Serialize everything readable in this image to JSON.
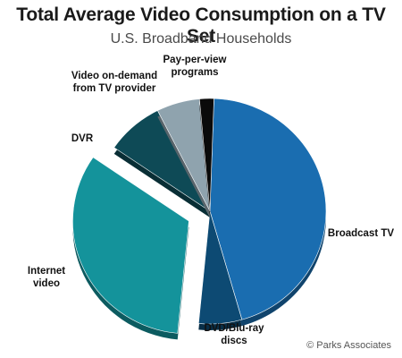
{
  "chart_data": {
    "type": "pie",
    "title": "Total Average Video Consumption on a TV Set",
    "subtitle": "U.S. Broadband Households",
    "source": "© Parks Associates",
    "slices": [
      {
        "label": [
          "Broadcast TV"
        ],
        "value": 45,
        "color": "#1a6db0"
      },
      {
        "label": [
          "DVD/Blu-ray",
          "discs"
        ],
        "value": 6,
        "color": "#0d4a73"
      },
      {
        "label": [
          "Internet",
          "video"
        ],
        "value": 33,
        "color": "#14939b",
        "exploded": true
      },
      {
        "label": [
          "DVR"
        ],
        "value": 8,
        "color": "#0e4a56"
      },
      {
        "label": [
          "Video on-demand",
          "from TV provider"
        ],
        "value": 6,
        "color": "#8fa3ae"
      },
      {
        "label": [
          "Pay-per-view",
          "programs"
        ],
        "value": 2,
        "color": "#0a0a0a"
      }
    ]
  }
}
